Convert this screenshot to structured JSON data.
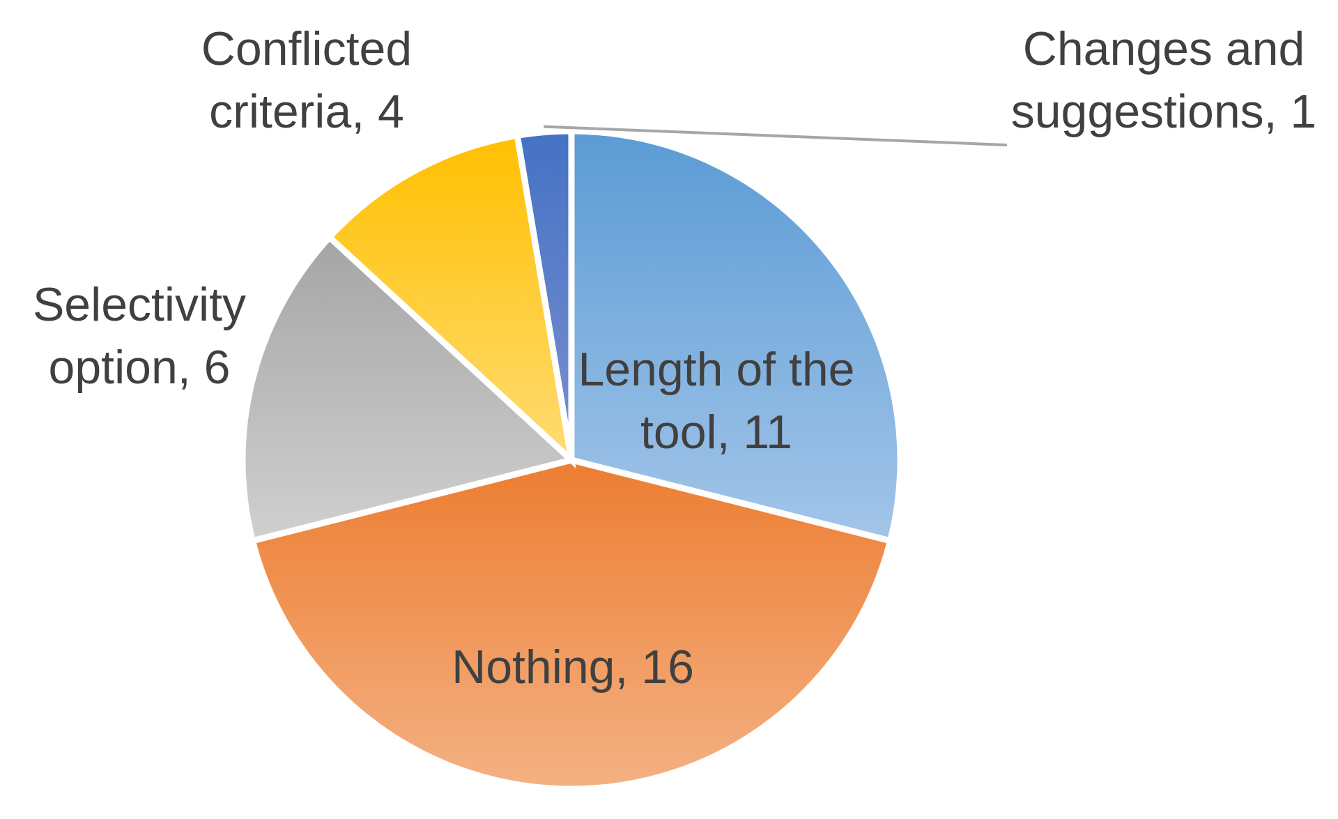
{
  "chart_data": {
    "type": "pie",
    "title": "",
    "start_angle_deg": 0,
    "direction": "clockwise",
    "legend": "none",
    "slices": [
      {
        "name": "Length of the tool",
        "value": 11,
        "color": "#5b9bd5",
        "color_light": "#a3c5e9",
        "label_lines": [
          "Length of the",
          "tool, 11"
        ]
      },
      {
        "name": "Nothing",
        "value": 16,
        "color": "#ed7d31",
        "color_light": "#f4b183",
        "label_lines": [
          "Nothing, 16"
        ]
      },
      {
        "name": "Selectivity option",
        "value": 6,
        "color": "#a5a5a5",
        "color_light": "#d0d0d0",
        "label_lines": [
          "Selectivity",
          "option, 6"
        ]
      },
      {
        "name": "Conflicted criteria",
        "value": 4,
        "color": "#ffc000",
        "color_light": "#ffdb73",
        "label_lines": [
          "Conflicted",
          "criteria, 4"
        ]
      },
      {
        "name": "Changes and suggestions",
        "value": 1,
        "color": "#4472c4",
        "color_light": "#7b8fd0",
        "label_lines": [
          "Changes and",
          "suggestions, 1"
        ]
      }
    ]
  }
}
